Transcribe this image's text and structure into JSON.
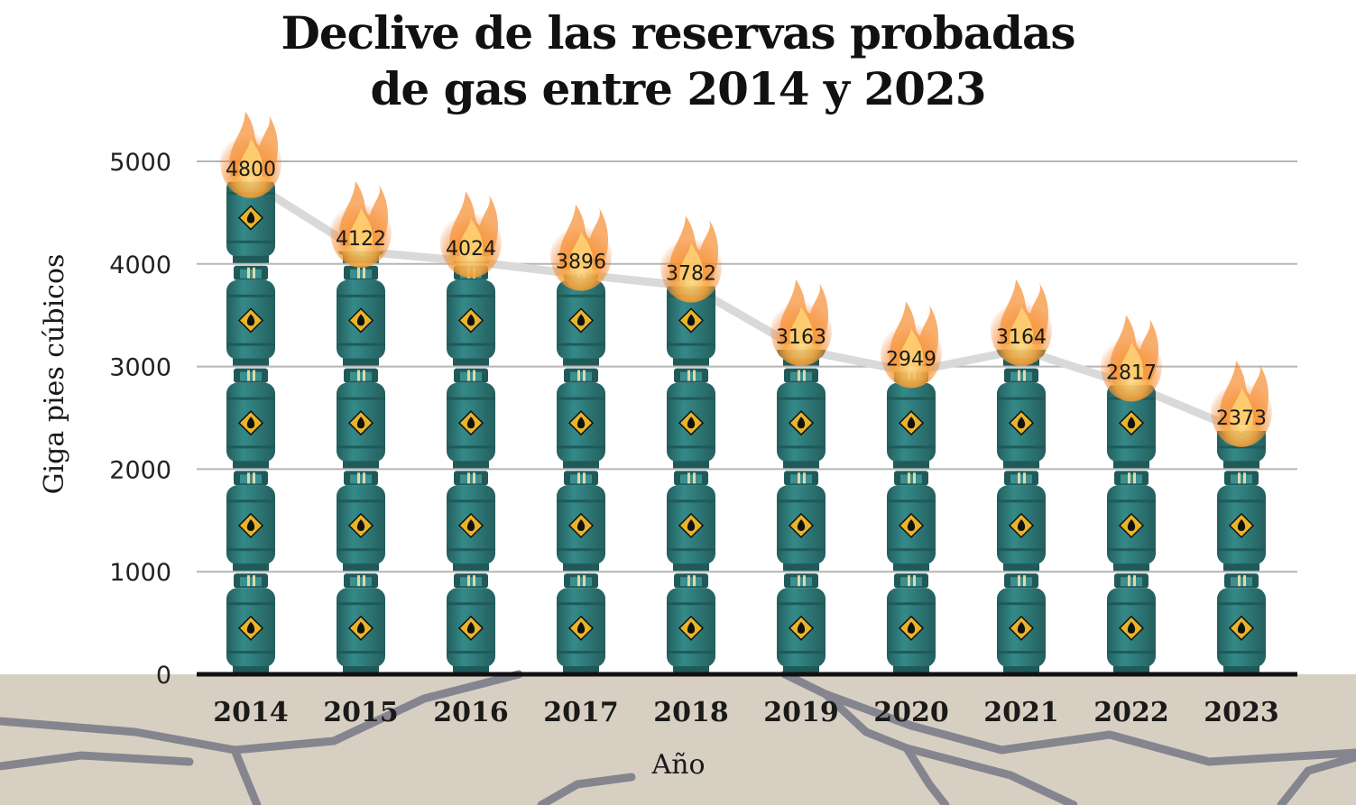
{
  "chart_data": {
    "type": "bar",
    "title_lines": [
      "Declive de las reservas probadas",
      "de gas entre 2014 y 2023"
    ],
    "xlabel": "Año",
    "ylabel": "Giga pies cúbicos",
    "categories": [
      "2014",
      "2015",
      "2016",
      "2017",
      "2018",
      "2019",
      "2020",
      "2021",
      "2022",
      "2023"
    ],
    "values": [
      4800,
      4122,
      4024,
      3896,
      3782,
      3163,
      2949,
      3164,
      2817,
      2373
    ],
    "ylim": [
      0,
      5000
    ],
    "yticks": [
      0,
      1000,
      2000,
      3000,
      4000,
      5000
    ],
    "grid": true,
    "legend": "none",
    "colors": {
      "cylinder": "#2e7c7b",
      "cylinder_dark": "#1f5a59",
      "label_diamond": "#e8b52a",
      "trend_line": "#d9d9d9",
      "grid": "#b5b5b5",
      "ground": "#d8cfc3",
      "crack": "#858590",
      "flame": "#f58a2a"
    }
  }
}
